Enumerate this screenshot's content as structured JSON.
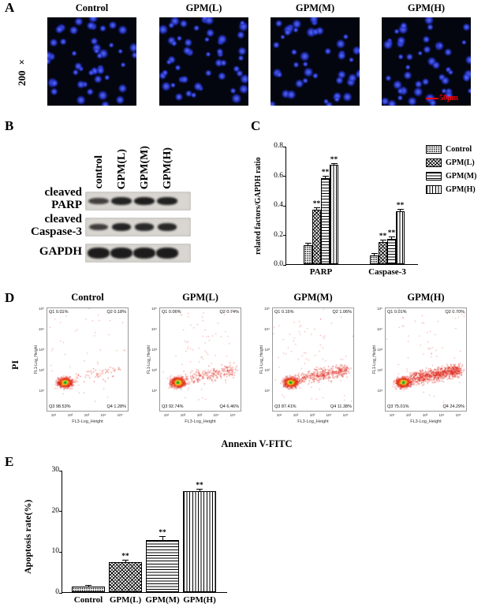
{
  "panels": {
    "A": {
      "label": "A",
      "magnification": "200 ×",
      "titles": [
        "Control",
        "GPM(L)",
        "GPM(M)",
        "GPM(H)"
      ],
      "scale_bar": "50μm",
      "colors": {
        "nuclei": "#3448e8",
        "image_background": "#04060f",
        "scale_bar": "#ff0000"
      }
    },
    "B": {
      "label": "B",
      "lane_labels": [
        "control",
        "GPM(L)",
        "GPM(M)",
        "GPM(H)"
      ],
      "row_labels": [
        "cleaved\nPARP",
        "cleaved\nCaspase-3",
        "GAPDH"
      ],
      "band_intensities": {
        "cleaved_PARP": [
          0.55,
          0.85,
          0.92,
          0.88
        ],
        "cleaved_Caspase3": [
          0.6,
          0.85,
          0.8,
          0.82
        ],
        "GAPDH": [
          0.95,
          0.95,
          0.95,
          0.95
        ]
      }
    },
    "C": {
      "label": "C"
    },
    "D": {
      "label": "D",
      "titles": [
        "Control",
        "GPM(L)",
        "GPM(M)",
        "GPM(H)"
      ],
      "y_axis_label": "PI",
      "x_axis_label": "Annexin V-FITC",
      "plot_y_label": "FL1-Log_Height",
      "plot_x_label": "FL3-Log_Height",
      "ticks": [
        "10¹",
        "10²",
        "10³",
        "10⁴",
        "10⁵"
      ],
      "scatter_color": "#e02318",
      "plots": [
        {
          "name": "Control",
          "q1": "Q1 0.01%",
          "q2": "Q2 0.18%",
          "q3": "Q3 98.53%",
          "q4": "Q4 1.28%",
          "q1_value": 0.01,
          "q2_value": 0.18,
          "q3_value": 98.53,
          "q4_value": 1.28
        },
        {
          "name": "GPM(L)",
          "q1": "Q1 0.06%",
          "q2": "Q2 0.74%",
          "q3": "Q3 92.74%",
          "q4": "Q4 6.46%",
          "q1_value": 0.06,
          "q2_value": 0.74,
          "q3_value": 92.74,
          "q4_value": 6.46
        },
        {
          "name": "GPM(M)",
          "q1": "Q1 0.15%",
          "q2": "Q2 1.06%",
          "q3": "Q3 87.41%",
          "q4": "Q4 11.38%",
          "q1_value": 0.15,
          "q2_value": 1.06,
          "q3_value": 87.41,
          "q4_value": 11.38
        },
        {
          "name": "GPM(H)",
          "q1": "Q1 0.01%",
          "q2": "Q2 0.70%",
          "q3": "Q3 75.01%",
          "q4": "Q4 24.29%",
          "q1_value": 0.01,
          "q2_value": 0.7,
          "q3_value": 75.01,
          "q4_value": 24.29
        }
      ]
    },
    "E": {
      "label": "E"
    }
  },
  "chart_data": [
    {
      "type": "bar",
      "panel": "C",
      "title": "",
      "ylabel": "related factors/GAPDH ratio",
      "xlabel": "",
      "ylim": [
        0,
        0.8
      ],
      "yticks": [
        "0.0",
        "0.2",
        "0.4",
        "0.6",
        "0.8"
      ],
      "categories": [
        "PARP",
        "Caspase-3"
      ],
      "series": [
        {
          "name": "Control",
          "pattern": "dots",
          "values": [
            0.13,
            0.06
          ],
          "sig": [
            "",
            ""
          ]
        },
        {
          "name": "GPM(L)",
          "pattern": "cross",
          "values": [
            0.37,
            0.15
          ],
          "sig": [
            "**",
            "**"
          ]
        },
        {
          "name": "GPM(M)",
          "pattern": "hstripe",
          "values": [
            0.58,
            0.17
          ],
          "sig": [
            "**",
            "**"
          ]
        },
        {
          "name": "GPM(H)",
          "pattern": "vstripe",
          "values": [
            0.67,
            0.36
          ],
          "sig": [
            "**",
            "**"
          ]
        }
      ],
      "error": 0.015,
      "legend_position": "right",
      "grid": false
    },
    {
      "type": "bar",
      "panel": "E",
      "title": "",
      "ylabel": "Apoptosis rate(%)",
      "xlabel": "",
      "ylim": [
        0,
        30
      ],
      "yticks": [
        "0",
        "10",
        "20",
        "30"
      ],
      "categories": [
        "Control",
        "GPM(L)",
        "GPM(M)",
        "GPM(H)"
      ],
      "values": [
        1.3,
        7.3,
        12.8,
        24.8
      ],
      "patterns": [
        "dots",
        "cross",
        "hstripe",
        "vstripe"
      ],
      "sig": [
        "",
        "**",
        "**",
        "**"
      ],
      "errors": [
        0.25,
        0.6,
        0.9,
        0.5
      ],
      "grid": false
    }
  ]
}
